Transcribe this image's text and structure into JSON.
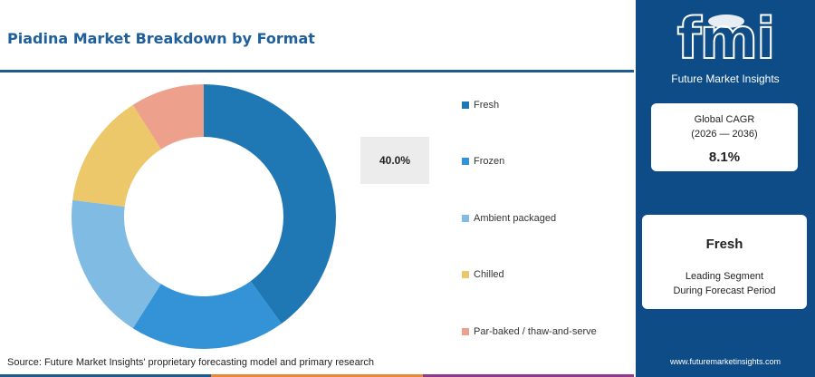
{
  "title": "Piadina Market Breakdown by Format",
  "chart_data": {
    "type": "pie",
    "donut": true,
    "categories": [
      "Fresh",
      "Frozen",
      "Ambient packaged",
      "Chilled",
      "Par-baked / thaw-and-serve"
    ],
    "values": [
      40.0,
      19.0,
      18.0,
      14.0,
      9.0
    ],
    "colors": [
      "#1f77b4",
      "#3393d6",
      "#7fbbe3",
      "#ecc86a",
      "#eda18c"
    ],
    "callout": "40.0%",
    "legend_position": "right"
  },
  "source": "Source: Future Market Insights' proprietary forecasting model and primary research",
  "bottom_bar_colors": [
    "#1d5a8e",
    "#e8883a",
    "#8e3a8c"
  ],
  "side_panel": {
    "logo_text": "fmi",
    "logo_name": "Future Market Insights",
    "cagr": {
      "label": "Global CAGR",
      "period": "(2026 — 2036)",
      "value": "8.1%"
    },
    "leading": {
      "name": "Fresh",
      "line1": "Leading Segment",
      "line2": "During Forecast Period"
    },
    "website": "www.futuremarketinsights.com"
  }
}
